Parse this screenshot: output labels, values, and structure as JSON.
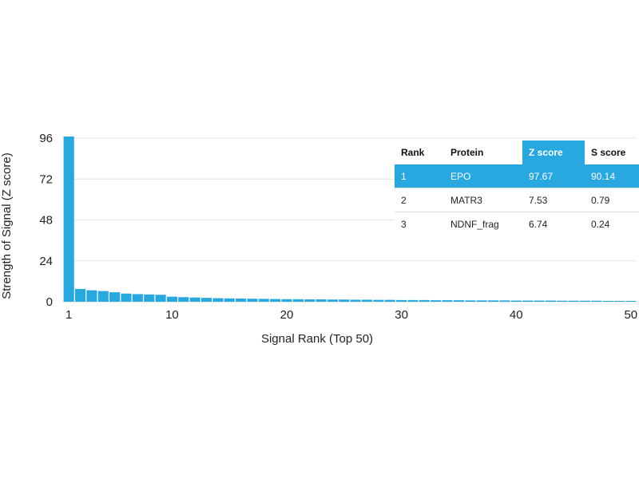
{
  "chart_data": {
    "type": "bar",
    "xlabel": "Signal Rank (Top 50)",
    "ylabel": "Strength of Signal (Z score)",
    "ylim": [
      0,
      96
    ],
    "xlim": [
      1,
      50
    ],
    "yticks": [
      0,
      24,
      48,
      72,
      96
    ],
    "xticks": [
      1,
      10,
      20,
      30,
      40,
      50
    ],
    "grid": true,
    "bar_color": "#29a8e0",
    "x": [
      1,
      2,
      3,
      4,
      5,
      6,
      7,
      8,
      9,
      10,
      11,
      12,
      13,
      14,
      15,
      16,
      17,
      18,
      19,
      20,
      21,
      22,
      23,
      24,
      25,
      26,
      27,
      28,
      29,
      30,
      31,
      32,
      33,
      34,
      35,
      36,
      37,
      38,
      39,
      40,
      41,
      42,
      43,
      44,
      45,
      46,
      47,
      48,
      49,
      50
    ],
    "values": [
      97.67,
      7.53,
      6.74,
      6.3,
      5.6,
      4.8,
      4.5,
      4.3,
      4.1,
      3.0,
      2.7,
      2.5,
      2.3,
      2.1,
      2.0,
      1.9,
      1.8,
      1.7,
      1.6,
      1.5,
      1.5,
      1.4,
      1.4,
      1.3,
      1.3,
      1.2,
      1.2,
      1.1,
      1.1,
      1.0,
      1.0,
      1.0,
      0.9,
      0.9,
      0.9,
      0.8,
      0.8,
      0.8,
      0.8,
      0.7,
      0.7,
      0.7,
      0.7,
      0.6,
      0.6,
      0.6,
      0.6,
      0.5,
      0.5,
      0.5
    ]
  },
  "table": {
    "headers": [
      "Rank",
      "Protein",
      "Z score",
      "S score"
    ],
    "highlight_color": "#29a8e0",
    "rows": [
      [
        "1",
        "EPO",
        "97.67",
        "90.14"
      ],
      [
        "2",
        "MATR3",
        "7.53",
        "0.79"
      ],
      [
        "3",
        "NDNF_frag",
        "6.74",
        "0.24"
      ]
    ]
  }
}
